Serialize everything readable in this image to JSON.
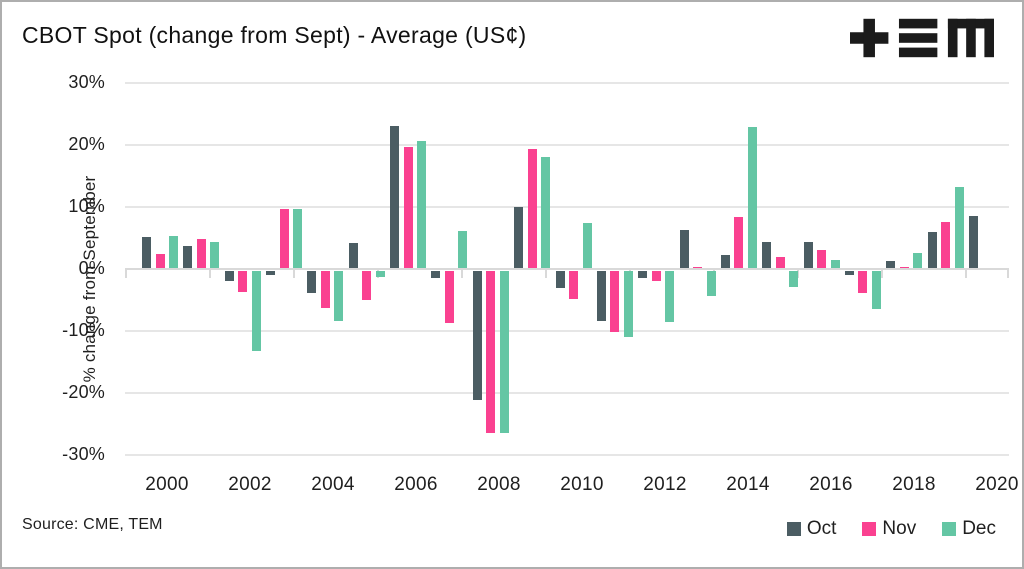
{
  "title": "CBOT Spot (change from Sept) - Average (US¢)",
  "source": "Source: CME, TEM",
  "logo": {
    "name": "TEM",
    "color": "#1b1b1b"
  },
  "colors": {
    "oct": "#4b5d63",
    "nov": "#fa4190",
    "dec": "#64c6a4",
    "gridline": "#e6e6e6",
    "axis": "#d9d9d9"
  },
  "chart_data": {
    "type": "bar",
    "title": "CBOT Spot (change from Sept) - Average (US¢)",
    "xlabel": "",
    "ylabel": "% change from September",
    "ylim": [
      -30,
      30
    ],
    "grid": "horizontal",
    "y_tick_labels": [
      "30%",
      "20%",
      "10%",
      "0%",
      "-10%",
      "-20%",
      "-30%"
    ],
    "y_tick_values": [
      30,
      20,
      10,
      0,
      -10,
      -20,
      -30
    ],
    "x_tick_labels": [
      "2000",
      "2002",
      "2004",
      "2006",
      "2008",
      "2010",
      "2012",
      "2014",
      "2016",
      "2018",
      "2020"
    ],
    "categories": [
      2000,
      2001,
      2002,
      2003,
      2004,
      2005,
      2006,
      2007,
      2008,
      2009,
      2010,
      2011,
      2012,
      2013,
      2014,
      2015,
      2016,
      2017,
      2018,
      2019,
      2020
    ],
    "series": [
      {
        "name": "Oct",
        "color": "#4b5d63",
        "values": [
          5.2,
          3.7,
          -1.6,
          -0.6,
          -3.5,
          4.2,
          23.0,
          -1.1,
          -20.8,
          10.0,
          -2.8,
          -8.1,
          -1.1,
          6.3,
          2.2,
          4.3,
          4.4,
          -0.7,
          1.3,
          5.9,
          8.5
        ]
      },
      {
        "name": "Nov",
        "color": "#fa4190",
        "values": [
          2.5,
          4.8,
          -3.4,
          9.6,
          -6.0,
          -4.6,
          19.7,
          -8.4,
          -26.1,
          19.3,
          -4.5,
          -9.9,
          -1.6,
          0.3,
          8.4,
          1.9,
          3.0,
          -3.6,
          0.3,
          7.6,
          null
        ]
      },
      {
        "name": "Dec",
        "color": "#64c6a4",
        "values": [
          5.3,
          4.3,
          -12.9,
          9.6,
          -8.1,
          -1.0,
          20.6,
          6.2,
          -26.2,
          18.1,
          7.5,
          -10.6,
          -8.2,
          -4.0,
          22.9,
          -2.6,
          1.5,
          -6.1,
          2.6,
          13.3,
          null
        ]
      }
    ],
    "legend": {
      "position": "bottom-right",
      "entries": [
        "Oct",
        "Nov",
        "Dec"
      ]
    }
  }
}
